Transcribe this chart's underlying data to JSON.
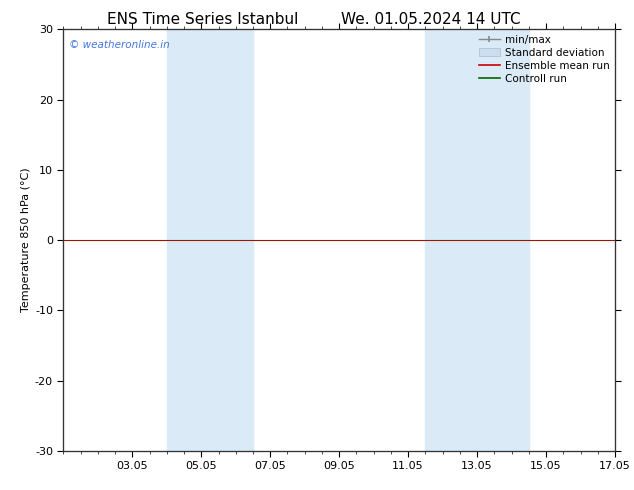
{
  "title_left": "ENS Time Series Istanbul",
  "title_right": "We. 01.05.2024 14 UTC",
  "ylabel": "Temperature 850 hPa (°C)",
  "ylim": [
    -30,
    30
  ],
  "yticks": [
    -30,
    -20,
    -10,
    0,
    10,
    20,
    30
  ],
  "xtick_labels": [
    "03.05",
    "05.05",
    "07.05",
    "09.05",
    "11.05",
    "13.05",
    "15.05",
    "17.05"
  ],
  "xtick_positions": [
    2,
    4,
    6,
    8,
    10,
    12,
    14,
    16
  ],
  "xlim": [
    0,
    16
  ],
  "shaded_bands": [
    {
      "x_start": 3.0,
      "x_end": 4.5,
      "color": "#daeaf7"
    },
    {
      "x_start": 4.5,
      "x_end": 5.5,
      "color": "#daeaf7"
    },
    {
      "x_start": 10.5,
      "x_end": 12.0,
      "color": "#daeaf7"
    },
    {
      "x_start": 12.0,
      "x_end": 13.5,
      "color": "#daeaf7"
    }
  ],
  "control_run_y": 0,
  "ensemble_mean_y": 0,
  "watermark": "© weatheronline.in",
  "watermark_color": "#4477dd",
  "background_color": "#ffffff",
  "plot_bg_color": "#ffffff",
  "legend_entries": [
    {
      "label": "min/max",
      "color": "#999999"
    },
    {
      "label": "Standard deviation",
      "color": "#ccddf0"
    },
    {
      "label": "Ensemble mean run",
      "color": "#cc0000"
    },
    {
      "label": "Controll run",
      "color": "#006600"
    }
  ],
  "title_fontsize": 11,
  "axis_label_fontsize": 8,
  "tick_fontsize": 8,
  "legend_fontsize": 7.5,
  "watermark_fontsize": 7.5
}
